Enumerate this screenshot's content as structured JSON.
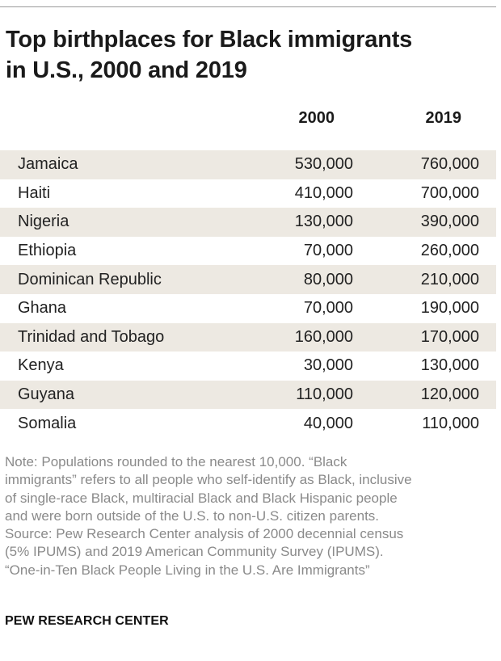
{
  "title_line1": "Top birthplaces for Black immigrants",
  "title_line2": "in U.S., 2000 and 2019",
  "chart_data": {
    "type": "table",
    "title": "Top birthplaces for Black immigrants in U.S., 2000 and 2019",
    "columns": [
      "2000",
      "2019"
    ],
    "rows": [
      {
        "country": "Jamaica",
        "v2000": "530,000",
        "v2019": "760,000"
      },
      {
        "country": "Haiti",
        "v2000": "410,000",
        "v2019": "700,000"
      },
      {
        "country": "Nigeria",
        "v2000": "130,000",
        "v2019": "390,000"
      },
      {
        "country": "Ethiopia",
        "v2000": "70,000",
        "v2019": "260,000"
      },
      {
        "country": "Dominican Republic",
        "v2000": "80,000",
        "v2019": "210,000"
      },
      {
        "country": "Ghana",
        "v2000": "70,000",
        "v2019": "190,000"
      },
      {
        "country": "Trinidad and Tobago",
        "v2000": "160,000",
        "v2019": "170,000"
      },
      {
        "country": "Kenya",
        "v2000": "30,000",
        "v2019": "130,000"
      },
      {
        "country": "Guyana",
        "v2000": "110,000",
        "v2019": "120,000"
      },
      {
        "country": "Somalia",
        "v2000": "40,000",
        "v2019": "110,000"
      }
    ]
  },
  "note_lines": [
    "Note: Populations rounded to the nearest 10,000. “Black",
    "immigrants” refers to all people who self-identify as Black, inclusive",
    "of single-race Black, multiracial Black and Black Hispanic people",
    "and were born outside of the U.S. to non-U.S. citizen parents.",
    "Source: Pew Research Center analysis of 2000 decennial census",
    "(5% IPUMS) and 2019 American Community Survey (IPUMS).",
    "“One-in-Ten Black People Living in the U.S. Are Immigrants”"
  ],
  "brand": "PEW RESEARCH CENTER",
  "colors": {
    "shade": "#ede9e2",
    "note": "#8a8a8a"
  }
}
